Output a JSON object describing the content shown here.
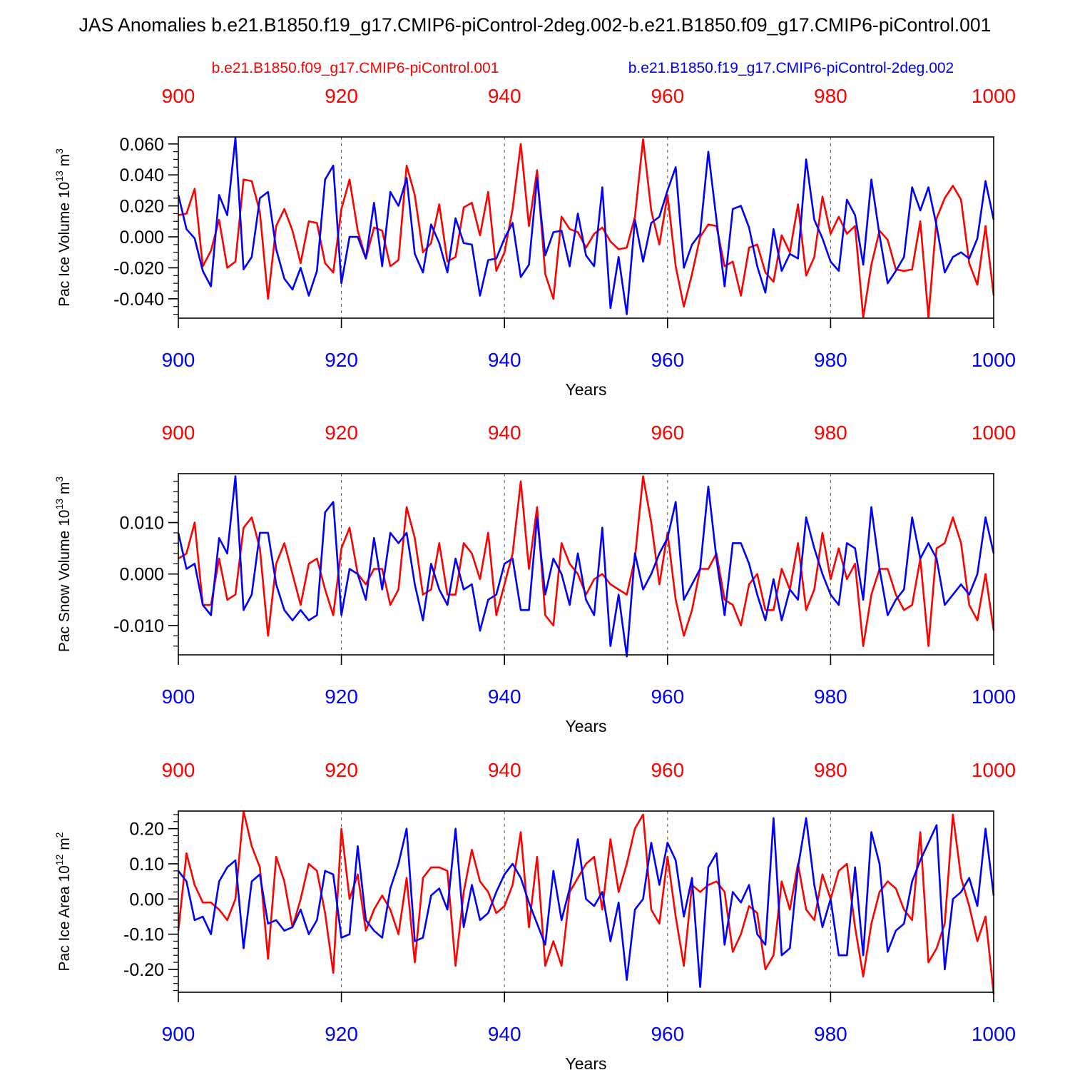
{
  "title": "JAS Anomalies b.e21.B1850.f19_g17.CMIP6-piControl-2deg.002-b.e21.B1850.f09_g17.CMIP6-piControl.001",
  "colors": {
    "red": "#ff0000",
    "blue": "#0000ff",
    "frame": "#000000",
    "grid": "#555555"
  },
  "legend": {
    "red_label": "b.e21.B1850.f09_g17.CMIP6-piControl.001",
    "blue_label": "b.e21.B1850.f19_g17.CMIP6-piControl-2deg.002"
  },
  "chart_data": [
    {
      "type": "line",
      "ylabel": "Pac Ice Volume 10",
      "ylabel_exp": "13",
      "ylabel_unit": "m",
      "ylabel_unit_exp": "3",
      "xlabel": "Years",
      "xlim": [
        900,
        1000
      ],
      "ylim": [
        -0.0525,
        0.0645
      ],
      "xticks": [
        900,
        920,
        940,
        960,
        980,
        1000
      ],
      "xtick_labels": [
        "900",
        "920",
        "940",
        "960",
        "980",
        "1000"
      ],
      "yticks": [
        -0.04,
        -0.02,
        0.0,
        0.02,
        0.04,
        0.06
      ],
      "ytick_labels": [
        "-0.040",
        "-0.020",
        "0.000",
        "0.020",
        "0.040",
        "0.060"
      ],
      "minor_y": 0.005,
      "x_start": 900,
      "series": [
        {
          "name": "b.e21.B1850.f09_g17.CMIP6-piControl.001",
          "color": "red",
          "values": [
            0.014,
            0.015,
            0.031,
            -0.019,
            -0.009,
            0.011,
            -0.02,
            -0.016,
            0.037,
            0.036,
            0.016,
            -0.04,
            0.007,
            0.018,
            0.004,
            -0.017,
            0.01,
            0.009,
            -0.017,
            -0.023,
            0.018,
            0.037,
            0.004,
            -0.014,
            0.006,
            0.004,
            -0.019,
            -0.015,
            0.046,
            0.027,
            -0.01,
            -0.004,
            0.021,
            -0.016,
            -0.013,
            0.019,
            0.022,
            0.001,
            0.029,
            -0.022,
            -0.01,
            0.018,
            0.06,
            0.007,
            0.043,
            -0.024,
            -0.04,
            0.013,
            0.005,
            0.003,
            -0.007,
            0.002,
            0.006,
            -0.003,
            -0.008,
            -0.007,
            0.013,
            0.063,
            0.017,
            -0.005,
            0.027,
            -0.019,
            -0.045,
            -0.024,
            0.0,
            0.008,
            0.007,
            -0.019,
            -0.016,
            -0.038,
            -0.007,
            -0.005,
            -0.023,
            -0.029,
            0.001,
            -0.01,
            0.021,
            -0.025,
            -0.013,
            0.026,
            0.002,
            0.013,
            0.002,
            0.007,
            -0.052,
            -0.018,
            0.004,
            -0.002,
            -0.021,
            -0.022,
            -0.021,
            0.01,
            -0.052,
            0.012,
            0.025,
            0.033,
            0.024,
            -0.017,
            -0.031,
            0.007,
            -0.038
          ]
        },
        {
          "name": "b.e21.B1850.f19_g17.CMIP6-piControl-2deg.002",
          "color": "blue",
          "values": [
            0.027,
            0.005,
            -0.001,
            -0.022,
            -0.032,
            0.027,
            0.014,
            0.064,
            -0.021,
            -0.013,
            0.025,
            0.029,
            -0.008,
            -0.027,
            -0.034,
            -0.02,
            -0.038,
            -0.022,
            0.037,
            0.046,
            -0.03,
            0.0,
            0.0,
            -0.014,
            0.022,
            -0.019,
            0.029,
            0.02,
            0.038,
            -0.011,
            -0.023,
            0.008,
            -0.004,
            -0.023,
            0.012,
            -0.004,
            -0.005,
            -0.038,
            -0.015,
            -0.014,
            -0.001,
            0.009,
            -0.026,
            -0.018,
            0.038,
            -0.012,
            0.003,
            0.004,
            -0.019,
            0.015,
            -0.012,
            -0.019,
            0.032,
            -0.046,
            -0.013,
            -0.05,
            0.011,
            -0.016,
            0.009,
            0.013,
            0.03,
            0.045,
            -0.02,
            -0.005,
            0.002,
            0.055,
            0.011,
            -0.032,
            0.018,
            0.02,
            0.006,
            -0.019,
            -0.036,
            0.005,
            -0.022,
            -0.011,
            -0.014,
            0.05,
            0.011,
            -0.001,
            -0.016,
            -0.022,
            0.024,
            0.014,
            -0.018,
            0.037,
            0.001,
            -0.03,
            -0.022,
            -0.013,
            0.032,
            0.017,
            0.032,
            0.007,
            -0.023,
            -0.013,
            -0.01,
            -0.014,
            -0.001,
            0.036,
            0.011
          ]
        }
      ]
    },
    {
      "type": "line",
      "ylabel": "Pac Snow Volume 10",
      "ylabel_exp": "13",
      "ylabel_unit": "m",
      "ylabel_unit_exp": "3",
      "xlabel": "Years",
      "xlim": [
        900,
        1000
      ],
      "ylim": [
        -0.0157,
        0.0195
      ],
      "xticks": [
        900,
        920,
        940,
        960,
        980,
        1000
      ],
      "xtick_labels": [
        "900",
        "920",
        "940",
        "960",
        "980",
        "1000"
      ],
      "yticks": [
        -0.01,
        0.0,
        0.01
      ],
      "ytick_labels": [
        "-0.010",
        "0.000",
        "0.010"
      ],
      "minor_y": 0.002,
      "x_start": 900,
      "series": [
        {
          "name": "b.e21.B1850.f09_g17.CMIP6-piControl.001",
          "color": "red",
          "values": [
            0.003,
            0.004,
            0.01,
            -0.006,
            -0.006,
            0.003,
            -0.005,
            -0.004,
            0.009,
            0.011,
            0.005,
            -0.012,
            0.002,
            0.006,
            0.0,
            -0.006,
            0.002,
            0.003,
            -0.003,
            -0.008,
            0.005,
            0.009,
            0.0,
            -0.002,
            0.001,
            0.001,
            -0.006,
            -0.003,
            0.013,
            0.007,
            -0.004,
            -0.003,
            0.006,
            -0.004,
            -0.004,
            0.006,
            0.004,
            -0.001,
            0.008,
            -0.008,
            -0.002,
            0.004,
            0.018,
            0.001,
            0.013,
            -0.008,
            -0.01,
            0.006,
            0.002,
            0.0,
            -0.004,
            -0.001,
            0.0,
            -0.002,
            -0.003,
            -0.004,
            0.003,
            0.019,
            0.01,
            -0.002,
            0.008,
            -0.005,
            -0.012,
            -0.007,
            0.001,
            0.001,
            0.004,
            -0.005,
            -0.006,
            -0.01,
            -0.002,
            0.0,
            -0.007,
            -0.007,
            0.001,
            -0.003,
            0.006,
            -0.007,
            -0.003,
            0.008,
            -0.001,
            0.005,
            -0.001,
            0.002,
            -0.014,
            -0.004,
            0.001,
            0.001,
            -0.004,
            -0.007,
            -0.006,
            0.003,
            -0.014,
            0.005,
            0.006,
            0.011,
            0.006,
            -0.006,
            -0.009,
            0.0,
            -0.011
          ]
        },
        {
          "name": "b.e21.B1850.f19_g17.CMIP6-piControl-2deg.002",
          "color": "blue",
          "values": [
            0.008,
            0.001,
            0.002,
            -0.006,
            -0.008,
            0.007,
            0.004,
            0.019,
            -0.007,
            -0.004,
            0.008,
            0.008,
            -0.002,
            -0.007,
            -0.009,
            -0.007,
            -0.009,
            -0.008,
            0.012,
            0.014,
            -0.008,
            0.001,
            0.0,
            -0.005,
            0.007,
            -0.003,
            0.008,
            0.006,
            0.008,
            -0.002,
            -0.009,
            0.002,
            -0.003,
            -0.006,
            0.003,
            -0.003,
            -0.002,
            -0.011,
            -0.005,
            -0.004,
            0.002,
            0.003,
            -0.007,
            -0.007,
            0.011,
            -0.004,
            0.003,
            0.0,
            -0.006,
            0.004,
            -0.005,
            -0.008,
            0.009,
            -0.014,
            -0.004,
            -0.016,
            0.004,
            -0.003,
            0.0,
            0.004,
            0.007,
            0.014,
            -0.005,
            -0.002,
            0.001,
            0.017,
            0.003,
            -0.008,
            0.006,
            0.006,
            0.002,
            -0.004,
            -0.009,
            -0.001,
            -0.009,
            -0.003,
            -0.005,
            0.011,
            0.005,
            0.0,
            -0.004,
            -0.006,
            0.006,
            0.005,
            -0.005,
            0.013,
            0.001,
            -0.008,
            -0.005,
            -0.003,
            0.011,
            0.003,
            0.006,
            0.003,
            -0.006,
            -0.004,
            -0.002,
            -0.004,
            0.0,
            0.011,
            0.004
          ]
        }
      ]
    },
    {
      "type": "line",
      "ylabel": "Pac Ice Area 10",
      "ylabel_exp": "12",
      "ylabel_unit": "m",
      "ylabel_unit_exp": "2",
      "xlabel": "Years",
      "xlim": [
        900,
        1000
      ],
      "ylim": [
        -0.265,
        0.25
      ],
      "xticks": [
        900,
        920,
        940,
        960,
        980,
        1000
      ],
      "xtick_labels": [
        "900",
        "920",
        "940",
        "960",
        "980",
        "1000"
      ],
      "yticks": [
        -0.2,
        -0.1,
        0.0,
        0.1,
        0.2
      ],
      "ytick_labels": [
        "-0.20",
        "-0.10",
        "0.00",
        "0.10",
        "0.20"
      ],
      "minor_y": 0.02,
      "x_start": 900,
      "series": [
        {
          "name": "b.e21.B1850.f09_g17.CMIP6-piControl.001",
          "color": "red",
          "values": [
            -0.09,
            0.13,
            0.04,
            -0.01,
            -0.01,
            -0.03,
            -0.06,
            0.0,
            0.25,
            0.15,
            0.09,
            -0.17,
            0.12,
            0.05,
            -0.08,
            0.0,
            0.1,
            0.08,
            -0.04,
            -0.21,
            0.2,
            0.0,
            0.07,
            -0.09,
            -0.03,
            0.01,
            -0.03,
            -0.1,
            0.06,
            -0.18,
            0.06,
            0.09,
            0.09,
            0.08,
            -0.19,
            0.02,
            0.14,
            0.05,
            0.02,
            -0.04,
            -0.02,
            0.04,
            0.19,
            -0.08,
            0.12,
            -0.19,
            -0.12,
            -0.19,
            0.02,
            0.06,
            0.1,
            0.12,
            -0.03,
            0.17,
            0.02,
            0.1,
            0.2,
            0.24,
            -0.03,
            -0.07,
            0.12,
            -0.05,
            -0.19,
            0.04,
            0.02,
            0.04,
            0.05,
            0.02,
            -0.15,
            -0.1,
            -0.02,
            -0.04,
            -0.2,
            -0.16,
            0.05,
            -0.03,
            0.1,
            -0.03,
            -0.06,
            0.07,
            0.0,
            0.08,
            0.1,
            -0.08,
            -0.22,
            -0.07,
            0.02,
            0.05,
            0.03,
            -0.03,
            -0.06,
            0.19,
            -0.18,
            -0.14,
            -0.07,
            0.24,
            0.06,
            -0.02,
            -0.12,
            -0.05,
            -0.27
          ]
        },
        {
          "name": "b.e21.B1850.f19_g17.CMIP6-piControl-2deg.002",
          "color": "blue",
          "values": [
            0.08,
            0.05,
            -0.06,
            -0.05,
            -0.1,
            0.05,
            0.09,
            0.11,
            -0.14,
            0.05,
            0.07,
            -0.07,
            -0.06,
            -0.09,
            -0.08,
            -0.03,
            -0.1,
            -0.06,
            0.08,
            0.07,
            -0.11,
            -0.1,
            0.15,
            -0.06,
            -0.09,
            -0.11,
            0.03,
            0.1,
            0.2,
            -0.12,
            -0.11,
            0.01,
            0.03,
            -0.03,
            0.2,
            -0.08,
            0.04,
            -0.06,
            -0.04,
            0.02,
            0.07,
            0.1,
            0.06,
            -0.01,
            -0.07,
            -0.13,
            0.08,
            -0.06,
            0.03,
            0.17,
            0.0,
            -0.02,
            0.02,
            -0.12,
            -0.01,
            -0.23,
            -0.03,
            0.0,
            0.16,
            0.04,
            0.16,
            0.11,
            -0.05,
            0.06,
            -0.25,
            0.09,
            0.13,
            -0.13,
            0.02,
            -0.01,
            0.04,
            -0.1,
            -0.13,
            0.23,
            -0.16,
            -0.14,
            0.09,
            0.23,
            0.04,
            -0.08,
            0.0,
            -0.16,
            -0.16,
            0.09,
            -0.16,
            0.19,
            0.1,
            -0.15,
            -0.09,
            -0.07,
            0.05,
            0.11,
            0.16,
            0.21,
            -0.2,
            0.0,
            0.02,
            0.06,
            -0.02,
            0.2,
            0.01
          ]
        }
      ]
    }
  ]
}
